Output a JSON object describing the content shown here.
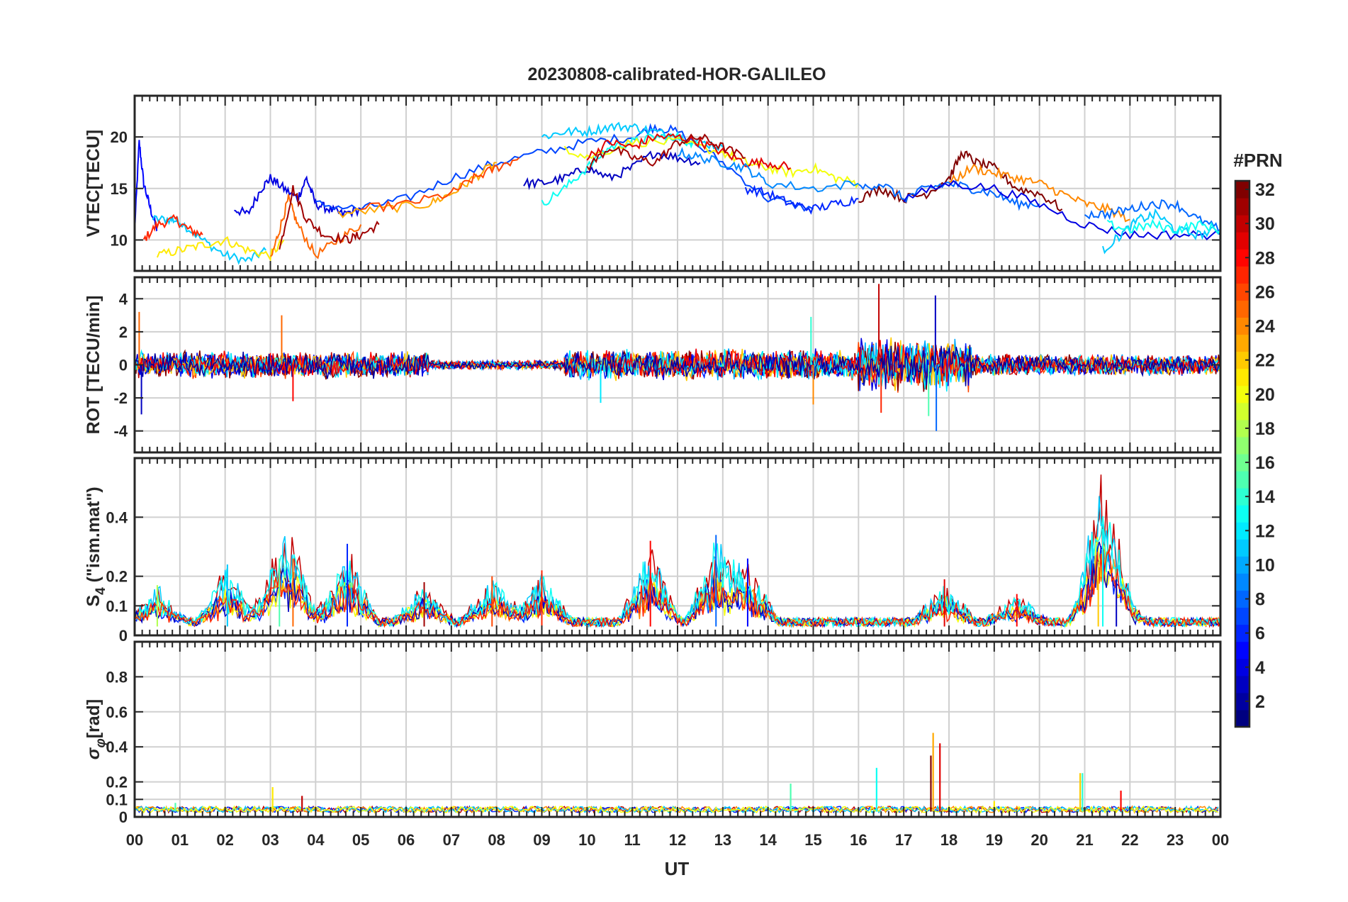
{
  "title": "20230808-calibrated-HOR-GALILEO",
  "colorbar": {
    "label": "#PRN",
    "range": [
      1,
      32
    ],
    "ticks": [
      2,
      4,
      6,
      8,
      10,
      12,
      14,
      16,
      18,
      20,
      22,
      24,
      26,
      28,
      30,
      32
    ]
  },
  "chart_data": [
    {
      "type": "line",
      "ylabel": "VTEC[TECU]",
      "ylim": [
        7,
        24
      ],
      "yticks": [
        10,
        15,
        20
      ],
      "xlabel": "",
      "series": [
        {
          "prn": 5,
          "x": [
            0.0,
            0.1,
            0.2,
            0.35,
            0.5
          ],
          "y": [
            11,
            19.5,
            15.5,
            13,
            11
          ]
        },
        {
          "prn": 11,
          "x": [
            0.4,
            0.8,
            1.0,
            1.5,
            2.0,
            2.5,
            2.9
          ],
          "y": [
            12,
            12,
            11.8,
            10,
            8.5,
            8,
            9
          ]
        },
        {
          "prn": 27,
          "x": [
            0.2,
            0.5,
            0.9,
            1.2,
            1.5
          ],
          "y": [
            10,
            11.5,
            12,
            11,
            10.5
          ]
        },
        {
          "prn": 4,
          "x": [
            2.2,
            2.5,
            2.8,
            3.0,
            3.3,
            3.6,
            3.8,
            4.0,
            4.3,
            4.6,
            5.0
          ],
          "y": [
            13,
            12.5,
            15,
            16,
            15,
            14,
            16,
            13.5,
            13,
            12.5,
            13
          ]
        },
        {
          "prn": 21,
          "x": [
            0.5,
            1.0,
            1.5,
            2.0,
            2.5,
            3.0,
            3.3
          ],
          "y": [
            8.5,
            9,
            9.5,
            10,
            9,
            8.5,
            10
          ]
        },
        {
          "prn": 25,
          "x": [
            3.0,
            3.2,
            3.4,
            3.6,
            4.0,
            4.5,
            5.0
          ],
          "y": [
            8,
            11,
            14,
            11.5,
            8.5,
            10,
            11.5
          ]
        },
        {
          "prn": 31,
          "x": [
            3.2,
            3.5,
            3.8,
            4.2,
            4.7,
            5.0,
            5.4
          ],
          "y": [
            9,
            15,
            12,
            10.5,
            10,
            10.5,
            11.5
          ]
        },
        {
          "prn": 7,
          "x": [
            4.0,
            5.0,
            6.0,
            7.0,
            8.0,
            9.0,
            10.0,
            11.0,
            11.5,
            12.0,
            13.0,
            14.0,
            15.0
          ],
          "y": [
            13.5,
            13,
            14,
            16,
            17.5,
            18.5,
            19.5,
            20,
            21,
            20.5,
            17.5,
            14,
            13
          ]
        },
        {
          "prn": 23,
          "x": [
            4.5,
            5.5,
            6.5,
            7.0,
            7.5,
            8.0
          ],
          "y": [
            12.5,
            13,
            13.5,
            14.5,
            16,
            17.5
          ]
        },
        {
          "prn": 26,
          "x": [
            5.0,
            6.0,
            7.0,
            7.5,
            8.0,
            8.5
          ],
          "y": [
            13,
            13.5,
            14.5,
            16,
            17,
            18
          ]
        },
        {
          "prn": 3,
          "x": [
            8.6,
            9.0,
            9.5,
            10.0,
            10.5,
            11.0,
            11.5,
            12.0,
            12.5
          ],
          "y": [
            15.5,
            15.5,
            16,
            17,
            16,
            17,
            18.5,
            18,
            17.5
          ]
        },
        {
          "prn": 11,
          "x": [
            9.0,
            9.5,
            10.0,
            10.5,
            11.0,
            11.5,
            12.0,
            12.5,
            13.0
          ],
          "y": [
            20,
            20.5,
            20.5,
            21,
            21,
            20.5,
            20,
            19.5,
            19
          ]
        },
        {
          "prn": 13,
          "x": [
            9.0,
            9.5,
            10.0,
            10.5,
            11.0,
            11.5,
            12.0,
            12.5
          ],
          "y": [
            13.5,
            15,
            17,
            19,
            19.5,
            20,
            20,
            19
          ]
        },
        {
          "prn": 20,
          "x": [
            9.5,
            10.0,
            11.0,
            12.0,
            13.0,
            13.5,
            14.0,
            14.5,
            15.0,
            15.5,
            16.0
          ],
          "y": [
            19,
            18,
            19.5,
            19.5,
            18.5,
            17.5,
            17,
            16.5,
            17,
            16,
            15.5
          ]
        },
        {
          "prn": 29,
          "x": [
            10.0,
            10.5,
            11.0,
            11.5,
            12.0,
            12.5,
            13.0,
            13.5,
            14.0,
            14.5
          ],
          "y": [
            18,
            19.5,
            19,
            20,
            20,
            19.5,
            18.5,
            17.5,
            17.5,
            17
          ]
        },
        {
          "prn": 31,
          "x": [
            10.0,
            10.5,
            11.0,
            11.5,
            12.0,
            12.5,
            13.0,
            13.5
          ],
          "y": [
            17,
            19,
            18,
            17.5,
            19.5,
            20,
            19,
            18
          ]
        },
        {
          "prn": 9,
          "x": [
            12.0,
            12.5,
            13.0,
            13.5,
            14.0,
            15.0,
            16.0
          ],
          "y": [
            18.5,
            18,
            17.5,
            17,
            15.5,
            15,
            15.5
          ]
        },
        {
          "prn": 6,
          "x": [
            13.5,
            14.0,
            14.5,
            15.0,
            15.5,
            16.0
          ],
          "y": [
            15,
            14.5,
            13.5,
            13,
            13.5,
            14
          ]
        },
        {
          "prn": 32,
          "x": [
            16.0,
            16.5,
            17.0,
            17.5,
            18.0,
            18.3,
            18.6,
            19.0,
            19.5,
            20.0,
            20.5
          ],
          "y": [
            14,
            15,
            14,
            14.5,
            16,
            18.5,
            17.5,
            17,
            15,
            14.5,
            13
          ]
        },
        {
          "prn": 24,
          "x": [
            18.0,
            18.5,
            19.0,
            19.5,
            20.0,
            20.5,
            21.0,
            21.5,
            22.0
          ],
          "y": [
            15.5,
            17,
            16.5,
            16,
            15.5,
            14.5,
            13.5,
            13,
            12
          ]
        },
        {
          "prn": 8,
          "x": [
            16.0,
            16.5,
            17.0,
            17.5,
            18.0,
            18.5,
            19.0,
            19.5,
            20.0
          ],
          "y": [
            15,
            15.5,
            14,
            15,
            15.5,
            15,
            14.5,
            13.5,
            13.5
          ]
        },
        {
          "prn": 4,
          "x": [
            17.0,
            18.0,
            19.0,
            20.0,
            21.0,
            22.0,
            23.0,
            24.0
          ],
          "y": [
            14,
            15.5,
            15,
            13.5,
            11.5,
            10.5,
            10.5,
            10.5
          ]
        },
        {
          "prn": 11,
          "x": [
            21.4,
            21.8,
            22.2,
            22.6,
            23.0,
            23.5,
            24.0
          ],
          "y": [
            9,
            10.5,
            12,
            12.5,
            11,
            10.5,
            11
          ]
        },
        {
          "prn": 8,
          "x": [
            21.0,
            21.5,
            22.0,
            22.5,
            23.0,
            23.5,
            24.0
          ],
          "y": [
            12.5,
            12.5,
            13,
            13.5,
            13.5,
            12,
            11
          ]
        },
        {
          "prn": 13,
          "x": [
            21.5,
            22.0,
            22.5,
            23.0,
            23.5,
            24.0
          ],
          "y": [
            11.5,
            11,
            11.5,
            11,
            11.5,
            11
          ]
        }
      ]
    },
    {
      "type": "line",
      "ylabel": "ROT [TECU/min]",
      "ylim": [
        -5.3,
        5.3
      ],
      "yticks": [
        -4,
        -2,
        0,
        2,
        4
      ],
      "xlabel": "",
      "bursts": [
        {
          "x0": 0.0,
          "x1": 6.5,
          "amp": 0.9
        },
        {
          "x0": 6.5,
          "x1": 9.5,
          "amp": 0.3
        },
        {
          "x0": 9.5,
          "x1": 16.0,
          "amp": 1.0
        },
        {
          "x0": 16.0,
          "x1": 18.5,
          "amp": 1.8
        },
        {
          "x0": 18.5,
          "x1": 24.0,
          "amp": 0.7
        }
      ],
      "spikes": [
        {
          "x": 0.1,
          "y": 3.2
        },
        {
          "x": 0.15,
          "y": -3.0
        },
        {
          "x": 3.25,
          "y": 3.0
        },
        {
          "x": 3.5,
          "y": -2.2
        },
        {
          "x": 14.95,
          "y": 2.9
        },
        {
          "x": 15.0,
          "y": -2.4
        },
        {
          "x": 16.45,
          "y": 4.9
        },
        {
          "x": 16.5,
          "y": -2.9
        },
        {
          "x": 17.7,
          "y": 4.2
        },
        {
          "x": 17.72,
          "y": -4.0
        },
        {
          "x": 17.55,
          "y": -3.1
        },
        {
          "x": 10.3,
          "y": -2.3
        }
      ]
    },
    {
      "type": "line",
      "ylabel": "S_4 (\"ism.mat\")",
      "ylim": [
        0,
        0.6
      ],
      "yticks": [
        0,
        0.1,
        0.2,
        0.4
      ],
      "xlabel": "",
      "peaks": [
        {
          "x": 0.5,
          "y": 0.17
        },
        {
          "x": 2.05,
          "y": 0.24
        },
        {
          "x": 3.2,
          "y": 0.26
        },
        {
          "x": 3.5,
          "y": 0.26
        },
        {
          "x": 4.7,
          "y": 0.31
        },
        {
          "x": 6.4,
          "y": 0.18
        },
        {
          "x": 7.9,
          "y": 0.2
        },
        {
          "x": 9.0,
          "y": 0.22
        },
        {
          "x": 11.4,
          "y": 0.32
        },
        {
          "x": 12.85,
          "y": 0.34
        },
        {
          "x": 13.55,
          "y": 0.26
        },
        {
          "x": 17.9,
          "y": 0.19
        },
        {
          "x": 19.5,
          "y": 0.14
        },
        {
          "x": 21.3,
          "y": 0.25
        },
        {
          "x": 21.4,
          "y": 0.36
        },
        {
          "x": 21.7,
          "y": 0.19
        }
      ]
    },
    {
      "type": "line",
      "ylabel": "σ_φ[rad]",
      "ylim": [
        0,
        1
      ],
      "yticks": [
        0,
        0.1,
        0.2,
        0.4,
        0.6,
        0.8
      ],
      "xlabel": "UT",
      "spikes": [
        {
          "x": 0.9,
          "y": 0.08
        },
        {
          "x": 3.05,
          "y": 0.17
        },
        {
          "x": 3.7,
          "y": 0.12
        },
        {
          "x": 14.5,
          "y": 0.19
        },
        {
          "x": 16.4,
          "y": 0.28
        },
        {
          "x": 17.6,
          "y": 0.35
        },
        {
          "x": 17.65,
          "y": 0.48
        },
        {
          "x": 17.8,
          "y": 0.42
        },
        {
          "x": 19.0,
          "y": 0.09
        },
        {
          "x": 20.9,
          "y": 0.25
        },
        {
          "x": 20.95,
          "y": 0.25
        },
        {
          "x": 21.8,
          "y": 0.15
        }
      ]
    }
  ],
  "xaxis": {
    "label": "UT",
    "range": [
      0,
      24
    ],
    "ticklabels": [
      "00",
      "01",
      "02",
      "03",
      "04",
      "05",
      "06",
      "07",
      "08",
      "09",
      "10",
      "11",
      "12",
      "13",
      "14",
      "15",
      "16",
      "17",
      "18",
      "19",
      "20",
      "21",
      "22",
      "23",
      "00"
    ]
  }
}
